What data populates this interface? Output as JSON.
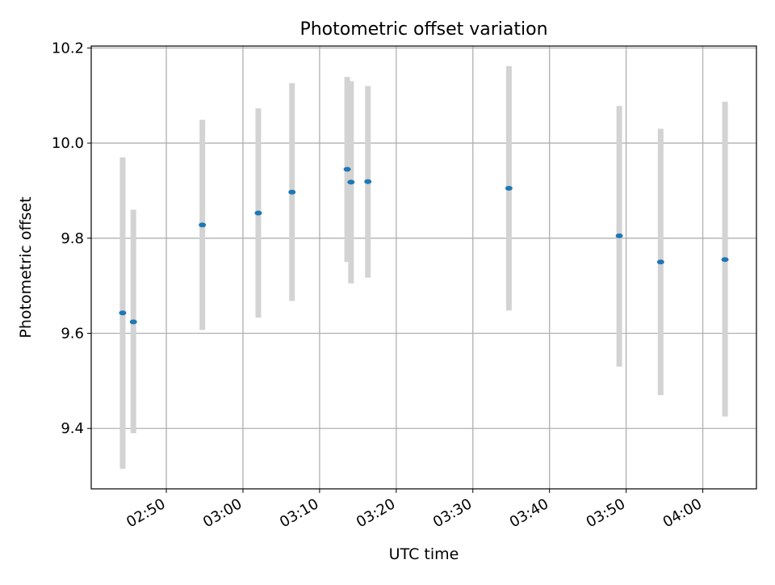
{
  "chart_data": {
    "type": "scatter",
    "title": "Photometric offset variation",
    "xlabel": "UTC time",
    "ylabel": "Photometric offset",
    "x_ticks": [
      "02:50",
      "03:00",
      "03:10",
      "03:20",
      "03:30",
      "03:40",
      "03:50",
      "04:00"
    ],
    "y_ticks": [
      "9.4",
      "9.6",
      "9.8",
      "10.0",
      "10.2"
    ],
    "x_tick_minutes": [
      170,
      180,
      190,
      200,
      210,
      220,
      230,
      240
    ],
    "y_tick_values": [
      9.4,
      9.6,
      9.8,
      10.0,
      10.2
    ],
    "xlim": [
      "02:40:12",
      "04:07:00"
    ],
    "ylim": [
      9.273,
      10.204
    ],
    "grid": true,
    "points": [
      {
        "x": "02:44:18",
        "y": 9.643,
        "yerr_low": 9.315,
        "yerr_high": 9.97
      },
      {
        "x": "02:45:42",
        "y": 9.624,
        "yerr_low": 9.39,
        "yerr_high": 9.86
      },
      {
        "x": "02:54:42",
        "y": 9.828,
        "yerr_low": 9.607,
        "yerr_high": 10.049
      },
      {
        "x": "03:02:00",
        "y": 9.853,
        "yerr_low": 9.633,
        "yerr_high": 10.073
      },
      {
        "x": "03:06:24",
        "y": 9.897,
        "yerr_low": 9.668,
        "yerr_high": 10.126
      },
      {
        "x": "03:13:36",
        "y": 9.945,
        "yerr_low": 9.75,
        "yerr_high": 10.139
      },
      {
        "x": "03:14:06",
        "y": 9.918,
        "yerr_low": 9.705,
        "yerr_high": 10.13
      },
      {
        "x": "03:16:18",
        "y": 9.919,
        "yerr_low": 9.717,
        "yerr_high": 10.12
      },
      {
        "x": "03:34:42",
        "y": 9.905,
        "yerr_low": 9.648,
        "yerr_high": 10.162
      },
      {
        "x": "03:49:06",
        "y": 9.805,
        "yerr_low": 9.53,
        "yerr_high": 10.078
      },
      {
        "x": "03:54:30",
        "y": 9.75,
        "yerr_low": 9.47,
        "yerr_high": 10.03
      },
      {
        "x": "04:02:54",
        "y": 9.755,
        "yerr_low": 9.425,
        "yerr_high": 10.087
      }
    ],
    "colors": {
      "marker": "#1f77b4",
      "errorbar": "#d3d3d3",
      "grid": "#b0b0b0",
      "axes": "#000000"
    }
  }
}
